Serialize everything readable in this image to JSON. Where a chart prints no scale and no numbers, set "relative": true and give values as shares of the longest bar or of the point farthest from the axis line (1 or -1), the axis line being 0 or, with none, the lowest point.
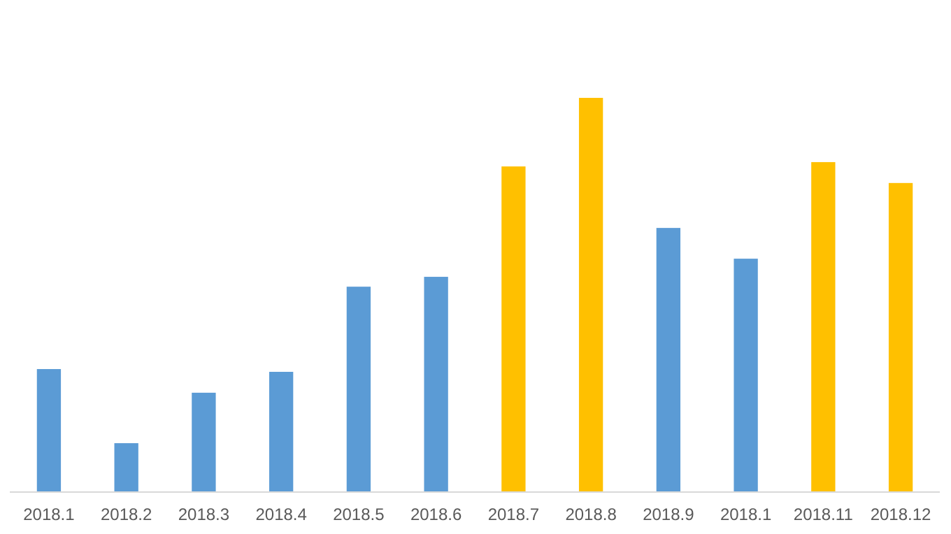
{
  "chart_data": {
    "type": "bar",
    "relative": true,
    "categories": [
      "2018.1",
      "2018.2",
      "2018.3",
      "2018.4",
      "2018.5",
      "2018.6",
      "2018.7",
      "2018.8",
      "2018.9",
      "2018.1",
      "2018.11",
      "2018.12"
    ],
    "values": [
      0.312,
      0.124,
      0.252,
      0.305,
      0.521,
      0.546,
      0.826,
      1,
      0.67,
      0.592,
      0.837,
      0.784
    ],
    "colors": [
      "#5b9bd5",
      "#5b9bd5",
      "#5b9bd5",
      "#5b9bd5",
      "#5b9bd5",
      "#5b9bd5",
      "#ffc000",
      "#ffc000",
      "#5b9bd5",
      "#5b9bd5",
      "#ffc000",
      "#ffc000"
    ]
  }
}
